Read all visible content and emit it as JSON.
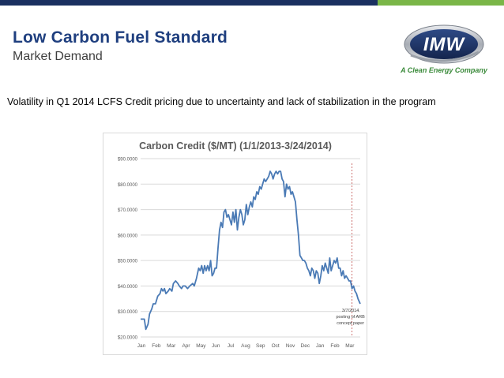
{
  "colors": {
    "navy": "#1a3060",
    "green": "#7ab648",
    "title_blue": "#1f3f7f",
    "subtitle_gray": "#3f3f3f",
    "tagline_green": "#3a8a3a",
    "line_blue": "#4a7ab5",
    "marker_red": "#c0504d",
    "grid": "#d9d9d9",
    "chart_title": "#595959"
  },
  "header": {
    "title": "Low Carbon Fuel Standard",
    "subtitle": "Market Demand"
  },
  "logo": {
    "name": "IMW",
    "tagline": "A Clean Energy Company"
  },
  "body": {
    "text": "Volatility in Q1 2014 LCFS Credit pricing due to uncertainty and lack of stabilization in the program"
  },
  "chart_data": {
    "type": "line",
    "title": "Carbon Credit ($/MT) (1/1/2013-3/24/2014)",
    "xlabel": "",
    "ylabel": "",
    "ylim": [
      20,
      90
    ],
    "yticks": [
      20,
      30,
      40,
      50,
      60,
      70,
      80,
      90
    ],
    "ytick_labels": [
      "$20.0000",
      "$30.0000",
      "$40.0000",
      "$50.0000",
      "$60.0000",
      "$70.0000",
      "$80.0000",
      "$90.0000"
    ],
    "xlim": [
      0,
      14.75
    ],
    "x_ticks": [
      0,
      1,
      2,
      3,
      4,
      5,
      6,
      7,
      8,
      9,
      10,
      11,
      12,
      13,
      14
    ],
    "x_tick_labels": [
      "Jan",
      "Feb",
      "Mar",
      "Apr",
      "May",
      "Jun",
      "Jul",
      "Aug",
      "Sep",
      "Oct",
      "Nov",
      "Dec",
      "Jan",
      "Feb",
      "Mar"
    ],
    "grid": true,
    "series": [
      {
        "x": [
          0.0,
          0.25,
          0.35,
          0.5,
          0.6,
          0.75,
          0.85,
          1.0,
          1.15,
          1.3,
          1.4,
          1.5,
          1.6,
          1.7,
          1.85,
          1.95,
          2.1,
          2.2,
          2.35,
          2.5,
          2.6,
          2.75,
          2.85,
          3.0,
          3.15,
          3.3,
          3.5,
          3.6,
          3.75,
          3.9,
          4.0,
          4.1,
          4.2,
          4.3,
          4.4,
          4.5,
          4.6,
          4.7,
          4.8,
          4.9,
          5.0,
          5.1,
          5.2,
          5.3,
          5.4,
          5.5,
          5.6,
          5.7,
          5.8,
          5.9,
          6.0,
          6.1,
          6.2,
          6.3,
          6.4,
          6.5,
          6.6,
          6.7,
          6.8,
          6.9,
          7.0,
          7.1,
          7.2,
          7.3,
          7.4,
          7.5,
          7.6,
          7.7,
          7.8,
          7.9,
          8.0,
          8.1,
          8.2,
          8.3,
          8.4,
          8.5,
          8.6,
          8.7,
          8.8,
          8.9,
          9.0,
          9.1,
          9.2,
          9.3,
          9.4,
          9.5,
          9.6,
          9.7,
          9.8,
          9.9,
          10.0,
          10.1,
          10.2,
          10.3,
          10.4,
          10.5,
          10.6,
          10.7,
          10.8,
          10.9,
          11.0,
          11.1,
          11.2,
          11.3,
          11.4,
          11.5,
          11.6,
          11.7,
          11.8,
          11.9,
          12.0,
          12.1,
          12.2,
          12.3,
          12.4,
          12.5,
          12.6,
          12.7,
          12.8,
          12.9,
          13.0,
          13.1,
          13.2,
          13.3,
          13.4,
          13.5,
          13.6,
          13.7,
          13.8,
          13.9,
          14.0,
          14.1,
          14.2,
          14.3,
          14.4,
          14.5,
          14.6,
          14.75
        ],
        "values": [
          27,
          27,
          23,
          25,
          29,
          31,
          33,
          33,
          36,
          37,
          39,
          38,
          39,
          37,
          38,
          39,
          38,
          41,
          42,
          41,
          40,
          39,
          40,
          40,
          39,
          40,
          41,
          40,
          43,
          47,
          46,
          48,
          45,
          48,
          46,
          48,
          46,
          50,
          44,
          45,
          47,
          47,
          55,
          62,
          65,
          63,
          69,
          70,
          67,
          68,
          66,
          64,
          69,
          65,
          70,
          62,
          67,
          70,
          68,
          64,
          66,
          72,
          68,
          71,
          73,
          71,
          75,
          74,
          77,
          76,
          79,
          78,
          80,
          82,
          81,
          82,
          83,
          85,
          84,
          82,
          84,
          85,
          84,
          85,
          85,
          82,
          81,
          75,
          80,
          78,
          79,
          76,
          77,
          75,
          73,
          66,
          60,
          52,
          51,
          50,
          50,
          49,
          47,
          46,
          44,
          47,
          46,
          43,
          46,
          45,
          41,
          44,
          48,
          46,
          49,
          47,
          45,
          51,
          46,
          48,
          50,
          49,
          51,
          47,
          47,
          44,
          46,
          43,
          44,
          43,
          42,
          42,
          39,
          40,
          38,
          37,
          35,
          33
        ]
      }
    ],
    "annotation": {
      "x": 14.2,
      "lines": [
        "3/7/2014",
        "posting of ARB",
        "concept paper"
      ]
    }
  }
}
